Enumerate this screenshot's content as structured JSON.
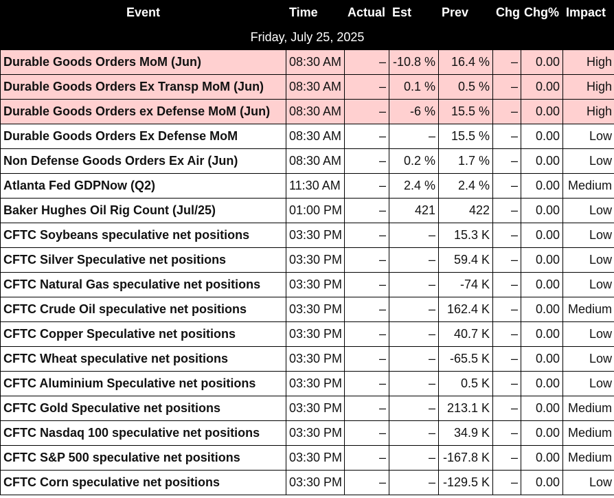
{
  "headers": {
    "event": "Event",
    "time": "Time",
    "actual": "Actual",
    "est": "Est",
    "prev": "Prev",
    "chg": "Chg",
    "chg_pct": "Chg%",
    "impact": "Impact"
  },
  "date_label": "Friday, July 25, 2025",
  "colors": {
    "high_row_bg": "#ffd0d0",
    "header_bg": "#000000"
  },
  "rows": [
    {
      "event": "Durable Goods Orders MoM (Jun)",
      "time": "08:30 AM",
      "actual": "–",
      "est": "-10.8 %",
      "prev": "16.4 %",
      "chg": "–",
      "chg_pct": "0.00",
      "impact": "High"
    },
    {
      "event": "Durable Goods Orders Ex Transp MoM (Jun)",
      "time": "08:30 AM",
      "actual": "–",
      "est": "0.1 %",
      "prev": "0.5 %",
      "chg": "–",
      "chg_pct": "0.00",
      "impact": "High"
    },
    {
      "event": "Durable Goods Orders ex Defense MoM (Jun)",
      "time": "08:30 AM",
      "actual": "–",
      "est": "-6 %",
      "prev": "15.5 %",
      "chg": "–",
      "chg_pct": "0.00",
      "impact": "High"
    },
    {
      "event": "Durable Goods Orders Ex Defense MoM",
      "time": "08:30 AM",
      "actual": "–",
      "est": "–",
      "prev": "15.5 %",
      "chg": "–",
      "chg_pct": "0.00",
      "impact": "Low"
    },
    {
      "event": "Non Defense Goods Orders Ex Air (Jun)",
      "time": "08:30 AM",
      "actual": "–",
      "est": "0.2 %",
      "prev": "1.7 %",
      "chg": "–",
      "chg_pct": "0.00",
      "impact": "Low"
    },
    {
      "event": "Atlanta Fed GDPNow (Q2)",
      "time": "11:30 AM",
      "actual": "–",
      "est": "2.4 %",
      "prev": "2.4 %",
      "chg": "–",
      "chg_pct": "0.00",
      "impact": "Medium"
    },
    {
      "event": "Baker Hughes Oil Rig Count (Jul/25)",
      "time": "01:00 PM",
      "actual": "–",
      "est": "421",
      "prev": "422",
      "chg": "–",
      "chg_pct": "0.00",
      "impact": "Low"
    },
    {
      "event": "CFTC Soybeans speculative net positions",
      "time": "03:30 PM",
      "actual": "–",
      "est": "–",
      "prev": "15.3 K",
      "chg": "–",
      "chg_pct": "0.00",
      "impact": "Low"
    },
    {
      "event": "CFTC Silver Speculative net positions",
      "time": "03:30 PM",
      "actual": "–",
      "est": "–",
      "prev": "59.4 K",
      "chg": "–",
      "chg_pct": "0.00",
      "impact": "Low"
    },
    {
      "event": "CFTC Natural Gas speculative net positions",
      "time": "03:30 PM",
      "actual": "–",
      "est": "–",
      "prev": "-74 K",
      "chg": "–",
      "chg_pct": "0.00",
      "impact": "Low"
    },
    {
      "event": "CFTC Crude Oil speculative net positions",
      "time": "03:30 PM",
      "actual": "–",
      "est": "–",
      "prev": "162.4 K",
      "chg": "–",
      "chg_pct": "0.00",
      "impact": "Medium"
    },
    {
      "event": "CFTC Copper Speculative net positions",
      "time": "03:30 PM",
      "actual": "–",
      "est": "–",
      "prev": "40.7 K",
      "chg": "–",
      "chg_pct": "0.00",
      "impact": "Low"
    },
    {
      "event": "CFTC Wheat speculative net positions",
      "time": "03:30 PM",
      "actual": "–",
      "est": "–",
      "prev": "-65.5 K",
      "chg": "–",
      "chg_pct": "0.00",
      "impact": "Low"
    },
    {
      "event": "CFTC Aluminium Speculative net positions",
      "time": "03:30 PM",
      "actual": "–",
      "est": "–",
      "prev": "0.5 K",
      "chg": "–",
      "chg_pct": "0.00",
      "impact": "Low"
    },
    {
      "event": "CFTC Gold Speculative net positions",
      "time": "03:30 PM",
      "actual": "–",
      "est": "–",
      "prev": "213.1 K",
      "chg": "–",
      "chg_pct": "0.00",
      "impact": "Medium"
    },
    {
      "event": "CFTC Nasdaq 100 speculative net positions",
      "time": "03:30 PM",
      "actual": "–",
      "est": "–",
      "prev": "34.9 K",
      "chg": "–",
      "chg_pct": "0.00",
      "impact": "Medium"
    },
    {
      "event": "CFTC S&P 500 speculative net positions",
      "time": "03:30 PM",
      "actual": "–",
      "est": "–",
      "prev": "-167.8 K",
      "chg": "–",
      "chg_pct": "0.00",
      "impact": "Medium"
    },
    {
      "event": "CFTC Corn speculative net positions",
      "time": "03:30 PM",
      "actual": "–",
      "est": "–",
      "prev": "-129.5 K",
      "chg": "–",
      "chg_pct": "0.00",
      "impact": "Low"
    }
  ]
}
